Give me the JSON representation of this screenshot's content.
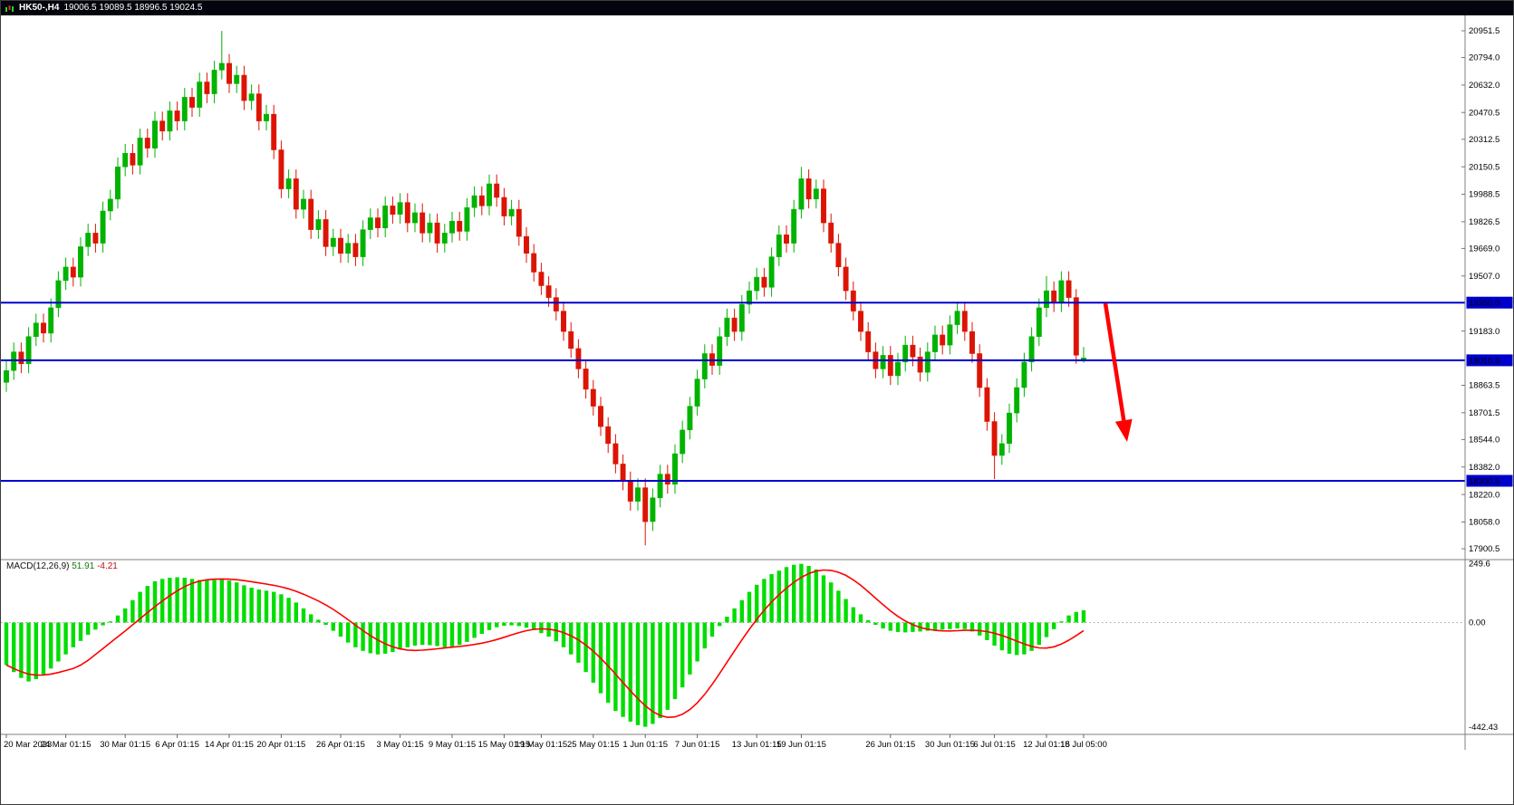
{
  "window": {
    "title_symbol": "HK50-,H4",
    "title_ohlc": "19006.5 19089.5 18996.5 19024.5"
  },
  "colors": {
    "bull": "#00b300",
    "bear": "#dc1404",
    "hline": "#0000cc",
    "badge_text": "#ffffff",
    "macd_bar": "#00dd00",
    "macd_signal": "#ff0000",
    "arrow": "#ff0000",
    "separator": "#7f7f7f",
    "axis_text": "#111111"
  },
  "chart_data": {
    "type": "candlestick+macd",
    "symbol": "HK50",
    "timeframe": "H4",
    "current_ohlc": {
      "open": 19006.5,
      "high": 19089.5,
      "low": 18996.5,
      "close": 19024.5
    },
    "price_axis": {
      "ticks": [
        "20951.5",
        "20794.0",
        "20632.0",
        "20470.5",
        "20312.5",
        "20150.5",
        "19988.5",
        "19826.5",
        "19669.0",
        "19507.0",
        "19183.0",
        "18863.5",
        "18701.5",
        "18544.0",
        "18382.0",
        "18220.0",
        "18058.0",
        "17900.5"
      ]
    },
    "hlines": [
      {
        "value": 19350.0,
        "label": "19350.0"
      },
      {
        "value": 19010.6,
        "label": "19010.6"
      },
      {
        "value": 18300.5,
        "label": "18300.5"
      }
    ],
    "x_axis_labels": [
      {
        "text": "20 Mar 2023",
        "i": 0
      },
      {
        "text": "24 Mar 01:15",
        "i": 8
      },
      {
        "text": "30 Mar 01:15",
        "i": 16
      },
      {
        "text": "6 Apr 01:15",
        "i": 23
      },
      {
        "text": "14 Apr 01:15",
        "i": 30
      },
      {
        "text": "20 Apr 01:15",
        "i": 37
      },
      {
        "text": "26 Apr 01:15",
        "i": 45
      },
      {
        "text": "3 May 01:15",
        "i": 53
      },
      {
        "text": "9 May 01:15",
        "i": 60
      },
      {
        "text": "15 May 01:15",
        "i": 67
      },
      {
        "text": "19 May 01:15",
        "i": 72
      },
      {
        "text": "25 May 01:15",
        "i": 79
      },
      {
        "text": "1 Jun 01:15",
        "i": 86
      },
      {
        "text": "7 Jun 01:15",
        "i": 93
      },
      {
        "text": "13 Jun 01:15",
        "i": 101
      },
      {
        "text": "19 Jun 01:15",
        "i": 107
      },
      {
        "text": "26 Jun 01:15",
        "i": 119
      },
      {
        "text": "30 Jun 01:15",
        "i": 127
      },
      {
        "text": "6 Jul 01:15",
        "i": 133
      },
      {
        "text": "12 Jul 01:15",
        "i": 140
      },
      {
        "text": "18 Jul 05:00",
        "i": 145
      }
    ],
    "candles": [
      [
        18880,
        19005,
        18825,
        18950
      ],
      [
        18950,
        19115,
        18895,
        19060
      ],
      [
        19060,
        19115,
        18935,
        18990
      ],
      [
        18990,
        19205,
        18935,
        19150
      ],
      [
        19150,
        19285,
        19095,
        19230
      ],
      [
        19230,
        19285,
        19115,
        19170
      ],
      [
        19170,
        19375,
        19115,
        19320
      ],
      [
        19320,
        19535,
        19265,
        19480
      ],
      [
        19480,
        19615,
        19425,
        19560
      ],
      [
        19560,
        19615,
        19445,
        19500
      ],
      [
        19500,
        19735,
        19445,
        19680
      ],
      [
        19680,
        19815,
        19625,
        19760
      ],
      [
        19760,
        19815,
        19645,
        19700
      ],
      [
        19700,
        19945,
        19645,
        19890
      ],
      [
        19890,
        20015,
        19835,
        19960
      ],
      [
        19960,
        20205,
        19905,
        20150
      ],
      [
        20150,
        20285,
        20095,
        20230
      ],
      [
        20230,
        20285,
        20105,
        20160
      ],
      [
        20160,
        20375,
        20105,
        20320
      ],
      [
        20320,
        20375,
        20205,
        20260
      ],
      [
        20260,
        20475,
        20205,
        20420
      ],
      [
        20420,
        20475,
        20305,
        20360
      ],
      [
        20360,
        20535,
        20305,
        20480
      ],
      [
        20480,
        20535,
        20365,
        20420
      ],
      [
        20420,
        20615,
        20365,
        20560
      ],
      [
        20560,
        20615,
        20445,
        20500
      ],
      [
        20500,
        20705,
        20445,
        20650
      ],
      [
        20650,
        20705,
        20525,
        20580
      ],
      [
        20580,
        20775,
        20525,
        20720
      ],
      [
        20720,
        20951,
        20665,
        20760
      ],
      [
        20760,
        20815,
        20585,
        20640
      ],
      [
        20640,
        20745,
        20585,
        20690
      ],
      [
        20690,
        20745,
        20485,
        20540
      ],
      [
        20540,
        20635,
        20485,
        20580
      ],
      [
        20580,
        20635,
        20365,
        20420
      ],
      [
        20420,
        20515,
        20365,
        20460
      ],
      [
        20460,
        20515,
        20195,
        20250
      ],
      [
        20250,
        20305,
        19965,
        20020
      ],
      [
        20020,
        20135,
        19965,
        20080
      ],
      [
        20080,
        20135,
        19845,
        19900
      ],
      [
        19900,
        20015,
        19845,
        19960
      ],
      [
        19960,
        20015,
        19725,
        19780
      ],
      [
        19780,
        19895,
        19725,
        19840
      ],
      [
        19840,
        19895,
        19625,
        19680
      ],
      [
        19680,
        19785,
        19625,
        19730
      ],
      [
        19730,
        19785,
        19585,
        19640
      ],
      [
        19640,
        19755,
        19585,
        19700
      ],
      [
        19700,
        19755,
        19565,
        19620
      ],
      [
        19620,
        19835,
        19565,
        19780
      ],
      [
        19780,
        19905,
        19725,
        19850
      ],
      [
        19850,
        19905,
        19735,
        19790
      ],
      [
        19790,
        19975,
        19735,
        19920
      ],
      [
        19920,
        19975,
        19815,
        19870
      ],
      [
        19870,
        19995,
        19815,
        19940
      ],
      [
        19940,
        19995,
        19765,
        19820
      ],
      [
        19820,
        19935,
        19765,
        19880
      ],
      [
        19880,
        19935,
        19705,
        19760
      ],
      [
        19760,
        19875,
        19705,
        19820
      ],
      [
        19820,
        19875,
        19645,
        19700
      ],
      [
        19700,
        19815,
        19645,
        19760
      ],
      [
        19760,
        19885,
        19705,
        19830
      ],
      [
        19830,
        19885,
        19715,
        19770
      ],
      [
        19770,
        19965,
        19715,
        19910
      ],
      [
        19910,
        20035,
        19855,
        19980
      ],
      [
        19980,
        20035,
        19865,
        19920
      ],
      [
        19920,
        20105,
        19865,
        20050
      ],
      [
        20050,
        20105,
        19915,
        19970
      ],
      [
        19970,
        20025,
        19805,
        19860
      ],
      [
        19860,
        19955,
        19805,
        19900
      ],
      [
        19900,
        19955,
        19685,
        19740
      ],
      [
        19740,
        19795,
        19585,
        19640
      ],
      [
        19640,
        19695,
        19475,
        19530
      ],
      [
        19530,
        19585,
        19395,
        19450
      ],
      [
        19450,
        19505,
        19325,
        19380
      ],
      [
        19380,
        19435,
        19245,
        19300
      ],
      [
        19300,
        19355,
        19125,
        19180
      ],
      [
        19180,
        19235,
        19025,
        19080
      ],
      [
        19080,
        19135,
        18905,
        18960
      ],
      [
        18960,
        19015,
        18785,
        18840
      ],
      [
        18840,
        18895,
        18685,
        18740
      ],
      [
        18740,
        18795,
        18565,
        18620
      ],
      [
        18620,
        18675,
        18465,
        18520
      ],
      [
        18520,
        18575,
        18345,
        18400
      ],
      [
        18400,
        18455,
        18245,
        18300
      ],
      [
        18300,
        18355,
        18125,
        18180
      ],
      [
        18180,
        18315,
        18125,
        18260
      ],
      [
        18260,
        18315,
        17920,
        18060
      ],
      [
        18060,
        18255,
        18005,
        18200
      ],
      [
        18200,
        18395,
        18145,
        18340
      ],
      [
        18340,
        18395,
        18225,
        18280
      ],
      [
        18280,
        18515,
        18225,
        18460
      ],
      [
        18460,
        18655,
        18405,
        18600
      ],
      [
        18600,
        18795,
        18545,
        18740
      ],
      [
        18740,
        18955,
        18685,
        18900
      ],
      [
        18900,
        19105,
        18845,
        19050
      ],
      [
        19050,
        19105,
        18925,
        18980
      ],
      [
        18980,
        19205,
        18925,
        19150
      ],
      [
        19150,
        19315,
        19095,
        19260
      ],
      [
        19260,
        19315,
        19125,
        19180
      ],
      [
        19180,
        19395,
        19125,
        19340
      ],
      [
        19340,
        19475,
        19285,
        19420
      ],
      [
        19420,
        19555,
        19365,
        19500
      ],
      [
        19500,
        19555,
        19385,
        19440
      ],
      [
        19440,
        19675,
        19385,
        19620
      ],
      [
        19620,
        19805,
        19565,
        19750
      ],
      [
        19750,
        19805,
        19645,
        19700
      ],
      [
        19700,
        19955,
        19645,
        19900
      ],
      [
        19900,
        20150,
        19845,
        20080
      ],
      [
        20080,
        20135,
        19905,
        19960
      ],
      [
        19960,
        20075,
        19905,
        20020
      ],
      [
        20020,
        20075,
        19765,
        19820
      ],
      [
        19820,
        19875,
        19645,
        19700
      ],
      [
        19700,
        19755,
        19505,
        19560
      ],
      [
        19560,
        19615,
        19365,
        19420
      ],
      [
        19420,
        19475,
        19245,
        19300
      ],
      [
        19300,
        19355,
        19125,
        19180
      ],
      [
        19180,
        19235,
        19005,
        19060
      ],
      [
        19060,
        19115,
        18905,
        18960
      ],
      [
        18960,
        19095,
        18905,
        19040
      ],
      [
        19040,
        19095,
        18865,
        18920
      ],
      [
        18920,
        19055,
        18865,
        19000
      ],
      [
        19000,
        19155,
        18945,
        19100
      ],
      [
        19100,
        19155,
        18975,
        19030
      ],
      [
        19030,
        19085,
        18885,
        18940
      ],
      [
        18940,
        19115,
        18885,
        19060
      ],
      [
        19060,
        19215,
        19005,
        19160
      ],
      [
        19160,
        19215,
        19045,
        19100
      ],
      [
        19100,
        19275,
        19045,
        19220
      ],
      [
        19220,
        19355,
        19165,
        19300
      ],
      [
        19300,
        19355,
        19125,
        19180
      ],
      [
        19180,
        19235,
        18995,
        19050
      ],
      [
        19050,
        19105,
        18795,
        18850
      ],
      [
        18850,
        18905,
        18595,
        18650
      ],
      [
        18650,
        18705,
        18310,
        18450
      ],
      [
        18450,
        18575,
        18395,
        18520
      ],
      [
        18520,
        18755,
        18465,
        18700
      ],
      [
        18700,
        18905,
        18645,
        18850
      ],
      [
        18850,
        19055,
        18795,
        19000
      ],
      [
        19000,
        19205,
        18945,
        19150
      ],
      [
        19150,
        19375,
        19095,
        19320
      ],
      [
        19320,
        19507,
        19265,
        19420
      ],
      [
        19420,
        19475,
        19295,
        19350
      ],
      [
        19350,
        19535,
        19295,
        19480
      ],
      [
        19480,
        19535,
        19325,
        19380
      ],
      [
        19380,
        19430,
        18990,
        19040
      ],
      [
        19006.5,
        19089.5,
        18996.5,
        19024.5
      ]
    ],
    "macd": {
      "label": "MACD(12,26,9)",
      "value_main": "51.91",
      "value_signal": "-4.21",
      "params": [
        12,
        26,
        9
      ],
      "axis_labels": [
        {
          "text": "249.6",
          "value": 249.6
        },
        {
          "text": "0.00",
          "value": 0
        },
        {
          "text": "-442.43",
          "value": -442.43
        }
      ],
      "hist": [
        -180,
        -210,
        -235,
        -250,
        -240,
        -220,
        -195,
        -165,
        -135,
        -105,
        -78,
        -52,
        -30,
        -12,
        5,
        30,
        60,
        95,
        130,
        155,
        175,
        185,
        190,
        192,
        190,
        185,
        180,
        178,
        180,
        182,
        178,
        170,
        158,
        148,
        140,
        135,
        130,
        120,
        105,
        85,
        60,
        35,
        12,
        -10,
        -35,
        -60,
        -85,
        -105,
        -120,
        -130,
        -135,
        -132,
        -125,
        -115,
        -105,
        -98,
        -95,
        -96,
        -100,
        -105,
        -102,
        -95,
        -82,
        -65,
        -48,
        -32,
        -20,
        -14,
        -12,
        -15,
        -22,
        -32,
        -45,
        -60,
        -80,
        -105,
        -135,
        -170,
        -210,
        -255,
        -300,
        -340,
        -375,
        -400,
        -420,
        -435,
        -442,
        -430,
        -405,
        -370,
        -325,
        -275,
        -220,
        -165,
        -110,
        -60,
        -15,
        25,
        60,
        95,
        130,
        160,
        185,
        205,
        220,
        235,
        245,
        249,
        240,
        225,
        200,
        170,
        135,
        100,
        65,
        35,
        10,
        -10,
        -25,
        -35,
        -40,
        -42,
        -40,
        -38,
        -35,
        -32,
        -30,
        -28,
        -25,
        -28,
        -38,
        -55,
        -75,
        -98,
        -118,
        -132,
        -138,
        -135,
        -120,
        -95,
        -62,
        -28,
        5,
        30,
        45,
        51.91
      ]
    },
    "annotation_arrow": {
      "from": [
        1219,
        334
      ],
      "to": [
        1243,
        487
      ]
    }
  }
}
